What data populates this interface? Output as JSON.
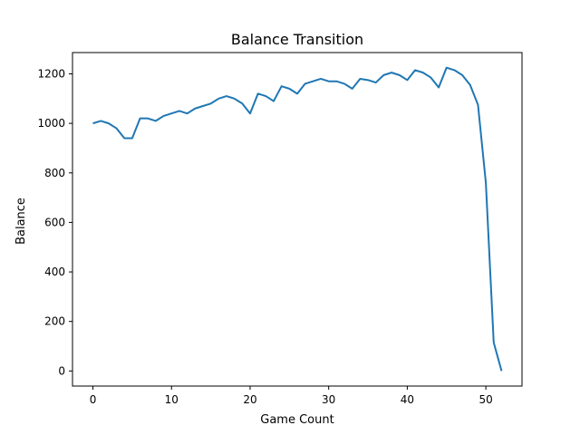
{
  "chart_data": {
    "type": "line",
    "title": "Balance Transition",
    "xlabel": "Game Count",
    "ylabel": "Balance",
    "xlim": [
      -2.6,
      54.6
    ],
    "ylim": [
      -61,
      1286
    ],
    "xticks": [
      0,
      10,
      20,
      30,
      40,
      50
    ],
    "yticks": [
      0,
      200,
      400,
      600,
      800,
      1000,
      1200
    ],
    "grid": false,
    "line_color": "#1f77b4",
    "series": [
      {
        "x": [
          0,
          1,
          2,
          3,
          4,
          5,
          6,
          7,
          8,
          9,
          10,
          11,
          12,
          13,
          14,
          15,
          16,
          17,
          18,
          19,
          20,
          21,
          22,
          23,
          24,
          25,
          26,
          27,
          28,
          29,
          30,
          31,
          32,
          33,
          34,
          35,
          36,
          37,
          38,
          39,
          40,
          41,
          42,
          43,
          44,
          45,
          46,
          47,
          48,
          49,
          50,
          51,
          52
        ],
        "values": [
          1000,
          1010,
          1000,
          980,
          940,
          940,
          1020,
          1020,
          1010,
          1030,
          1040,
          1050,
          1040,
          1060,
          1070,
          1080,
          1100,
          1110,
          1100,
          1080,
          1040,
          1120,
          1110,
          1090,
          1150,
          1140,
          1120,
          1160,
          1170,
          1180,
          1170,
          1170,
          1160,
          1140,
          1180,
          1175,
          1165,
          1195,
          1205,
          1195,
          1175,
          1215,
          1205,
          1185,
          1145,
          1225,
          1215,
          1195,
          1155,
          1075,
          760,
          115,
          0
        ]
      }
    ]
  }
}
